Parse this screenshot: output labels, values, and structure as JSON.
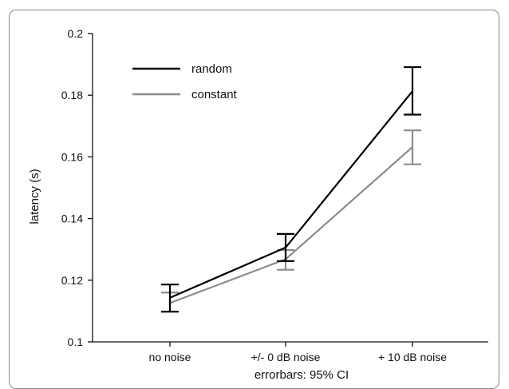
{
  "chart_data": {
    "type": "line",
    "categories": [
      "no noise",
      "+/- 0 dB noise",
      "+ 10 dB noise"
    ],
    "ylabel": "latency (s)",
    "xlabel": "errorbars: 95% CI",
    "ylim": [
      0.1,
      0.2
    ],
    "yticks": [
      0.1,
      0.12,
      0.14,
      0.16,
      0.18,
      0.2
    ],
    "ytick_labels": [
      "0.1",
      "0.12",
      "0.14",
      "0.16",
      "0.18",
      "0.2"
    ],
    "legend_position": "top-left",
    "grid": false,
    "series": [
      {
        "name": "random",
        "color": "#000000",
        "values": [
          0.1143,
          0.1306,
          0.1813
        ],
        "ci_low": [
          0.1098,
          0.1262,
          0.1737
        ],
        "ci_high": [
          0.1186,
          0.135,
          0.1891
        ]
      },
      {
        "name": "constant",
        "color": "#8c8c8c",
        "values": [
          0.1126,
          0.1268,
          0.1632
        ],
        "ci_low": [
          0.1098,
          0.1234,
          0.1576
        ],
        "ci_high": [
          0.116,
          0.1298,
          0.1686
        ]
      }
    ]
  }
}
